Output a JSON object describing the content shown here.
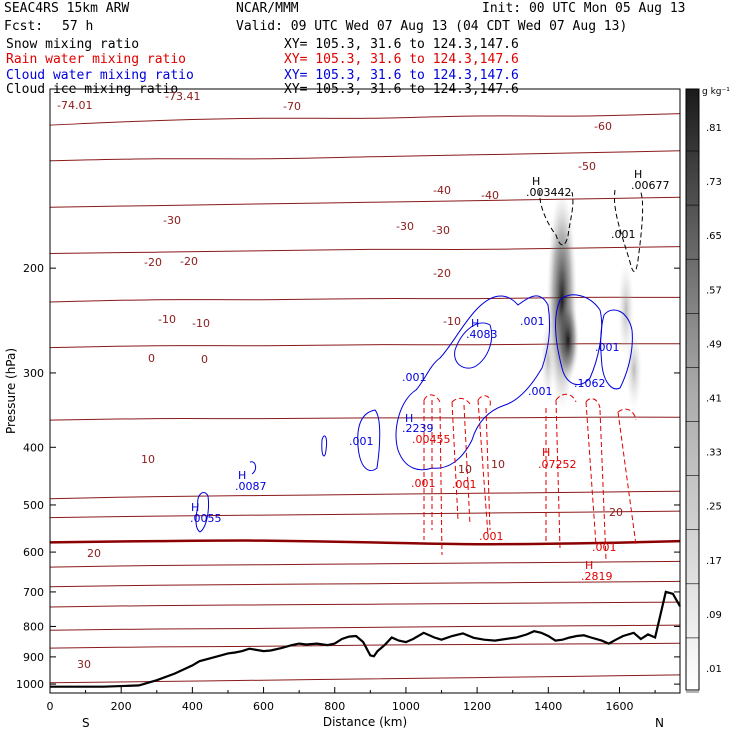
{
  "header": {
    "model": "SEAC4RS 15km ARW",
    "institution": "NCAR/MMM",
    "init": "Init: 00 UTC Mon 05 Aug 13",
    "fcst_label": "Fcst:",
    "fcst_value": "57 h",
    "valid": "Valid: 09 UTC Wed 07 Aug 13 (04 CDT Wed 07 Aug 13)"
  },
  "fields": [
    {
      "name": "Snow mixing ratio",
      "xy": "XY= 105.3, 31.6 to 124.3,147.6",
      "color": "#000000"
    },
    {
      "name": "Rain water mixing ratio",
      "xy": "XY= 105.3, 31.6 to 124.3,147.6",
      "color": "#e00000"
    },
    {
      "name": "Cloud water mixing ratio",
      "xy": "XY= 105.3, 31.6 to 124.3,147.6",
      "color": "#0000dd"
    },
    {
      "name": "Cloud ice mixing ratio",
      "xy": "XY= 105.3, 31.6 to 124.3,147.6",
      "color": "#000000"
    }
  ],
  "colors": {
    "temperature": "#8b1a1a",
    "freezing": "#8b0000",
    "rain": "#e00000",
    "cloud": "#0000dd",
    "terrain": "#000000"
  },
  "chart_data": {
    "type": "cross-section",
    "xlabel": "Distance (km)",
    "ylabel": "Pressure (hPa)",
    "xlim": [
      0,
      1770
    ],
    "ylim": [
      1035,
      100
    ],
    "y_scale": "log",
    "x_ticks": [
      0,
      200,
      400,
      600,
      800,
      1000,
      1200,
      1400,
      1600
    ],
    "y_ticks": [
      200,
      300,
      400,
      500,
      600,
      700,
      800,
      900,
      1000
    ],
    "endpoint_left": "S",
    "endpoint_right": "N",
    "colorbar": {
      "unit": "g kg⁻¹",
      "labels": [
        ".01",
        ".09",
        ".17",
        ".25",
        ".33",
        ".41",
        ".49",
        ".57",
        ".65",
        ".73",
        ".81"
      ]
    },
    "temperature_labels": [
      "-74.01",
      "-73.41",
      "-70",
      "-60",
      "-50",
      "-40",
      "-40",
      "-30",
      "-30",
      "-30",
      "-20",
      "-20",
      "-20",
      "-10",
      "-10",
      "-10",
      "0",
      "0",
      "10",
      "10",
      "10",
      "20",
      "20",
      "30"
    ],
    "freezing_level_hpa": 580,
    "cloud_labels": [
      ".4083",
      ".001",
      ".001",
      ".001",
      ".001",
      ".1062",
      ".2239",
      ".001",
      ".0087",
      ".0055"
    ],
    "rain_labels": [
      ".00455",
      ".001",
      ".001",
      ".07252",
      ".001",
      ".001",
      ".2819"
    ],
    "snow_labels": [
      ".003442",
      ".00677",
      ".001"
    ],
    "max_marker": "H",
    "terrain": {
      "x": [
        0,
        150,
        250,
        300,
        350,
        400,
        420,
        450,
        480,
        500,
        520,
        540,
        560,
        600,
        620,
        650,
        680,
        700,
        720,
        750,
        780,
        800,
        820,
        840,
        860,
        880,
        900,
        910,
        920,
        940,
        960,
        980,
        1000,
        1020,
        1050,
        1080,
        1100,
        1130,
        1160,
        1190,
        1220,
        1250,
        1280,
        1310,
        1340,
        1360,
        1380,
        1400,
        1420,
        1440,
        1460,
        1480,
        1500,
        1520,
        1550,
        1570,
        1590,
        1610,
        1640,
        1660,
        1680,
        1700,
        1730,
        1750,
        1770
      ],
      "p": [
        1010,
        1010,
        1005,
        985,
        960,
        930,
        915,
        905,
        895,
        888,
        885,
        880,
        872,
        880,
        878,
        870,
        860,
        855,
        858,
        855,
        860,
        855,
        840,
        832,
        830,
        850,
        895,
        898,
        880,
        860,
        835,
        845,
        850,
        840,
        820,
        835,
        842,
        830,
        822,
        836,
        842,
        845,
        840,
        835,
        825,
        815,
        820,
        830,
        845,
        842,
        835,
        830,
        828,
        835,
        845,
        855,
        842,
        830,
        820,
        840,
        825,
        835,
        700,
        705,
        740
      ]
    },
    "temperature_contours": [
      {
        "value": -70,
        "p": [
          115,
          113,
          112,
          112,
          111,
          111,
          110
        ]
      },
      {
        "value": -60,
        "p": [
          132,
          131,
          131,
          130,
          129,
          128,
          127
        ]
      },
      {
        "value": -50,
        "p": [
          158,
          157,
          156,
          155,
          154,
          153,
          152
        ]
      },
      {
        "value": -40,
        "p": [
          189,
          188,
          187,
          186,
          186,
          185,
          184
        ]
      },
      {
        "value": -30,
        "p": [
          228,
          226,
          226,
          225,
          225,
          224,
          224
        ]
      },
      {
        "value": -20,
        "p": [
          272,
          270,
          270,
          269,
          269,
          268,
          268
        ]
      },
      {
        "value": -10,
        "p": [
          360,
          358,
          358,
          357,
          357,
          356,
          356
        ]
      },
      {
        "value": -10,
        "p": [
          488,
          484,
          482,
          480,
          478,
          476,
          474
        ]
      },
      {
        "value": -5,
        "p": [
          525,
          522,
          520,
          518,
          516,
          514,
          512
        ]
      },
      {
        "value": 0,
        "p": [
          578,
          575,
          574,
          578,
          582,
          580,
          575
        ]
      },
      {
        "value": 5,
        "p": [
          636,
          632,
          630,
          628,
          626,
          624,
          622
        ]
      },
      {
        "value": 10,
        "p": [
          686,
          682,
          680,
          678,
          676,
          674,
          672
        ]
      },
      {
        "value": 15,
        "p": [
          742,
          738,
          736,
          734,
          732,
          730,
          728
        ]
      },
      {
        "value": 20,
        "p": [
          812,
          808,
          806,
          803,
          800,
          798,
          796
        ]
      },
      {
        "value": 25,
        "p": [
          870,
          866,
          864,
          860,
          858,
          856,
          854
        ]
      },
      {
        "value": 30,
        "p": [
          995,
          990,
          985,
          980,
          975,
          970,
          965
        ]
      }
    ],
    "temperature_x": [
      0,
      300,
      600,
      900,
      1200,
      1500,
      1770
    ]
  }
}
